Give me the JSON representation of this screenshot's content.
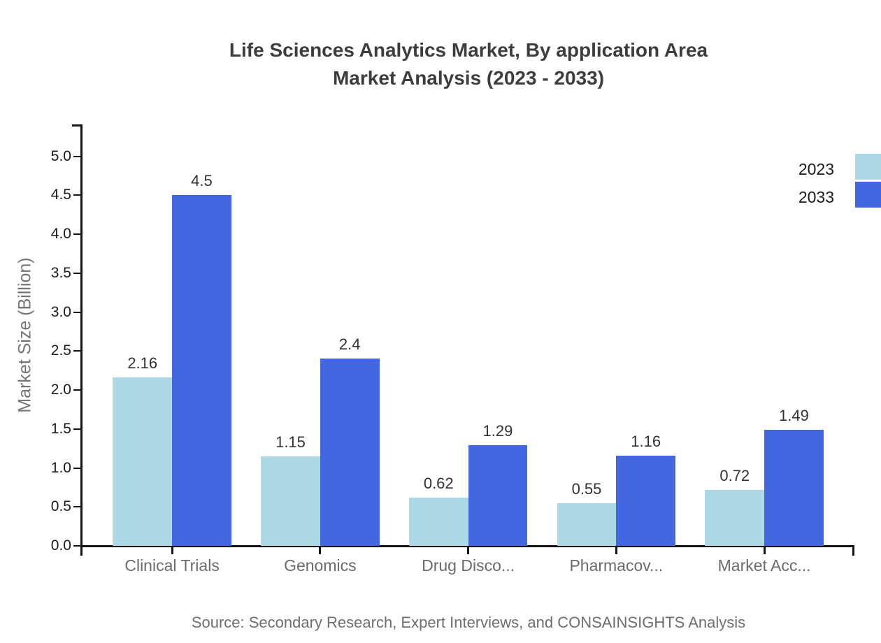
{
  "title": {
    "line1": "Life Sciences Analytics Market, By application Area",
    "line2": "Market Analysis (2023 - 2033)"
  },
  "source": "Source: Secondary Research, Expert Interviews, and CONSAINSIGHTS Analysis",
  "colors": {
    "series_2023": "#ADD8E6",
    "series_2033": "#4267E0",
    "axis": "#141414",
    "title_text": "#3D3D3D",
    "ytick_label": "#1A1A1A",
    "category_label": "#6B6B6B",
    "value_label": "#333333",
    "axis_title": "#757575",
    "source_text": "#6E6E6E",
    "background": "#FFFFFF"
  },
  "chart_data": {
    "type": "bar",
    "title": "Life Sciences Analytics Market, By application Area Market Analysis (2023 - 2033)",
    "categories": [
      "Clinical Trials",
      "Genomics",
      "Drug Disco...",
      "Pharmacov...",
      "Market Acc..."
    ],
    "series": [
      {
        "name": "2023",
        "color": "#ADD8E6",
        "values": [
          2.16,
          1.15,
          0.62,
          0.55,
          0.72
        ],
        "value_labels": [
          "2.16",
          "1.15",
          "0.62",
          "0.55",
          "0.72"
        ]
      },
      {
        "name": "2033",
        "color": "#4267E0",
        "values": [
          4.5,
          2.4,
          1.29,
          1.16,
          1.49
        ],
        "value_labels": [
          "4.5",
          "2.4",
          "1.29",
          "1.16",
          "1.49"
        ]
      }
    ],
    "xlabel": "",
    "ylabel": "Market Size (Billion)",
    "ylim": [
      0,
      5.4
    ],
    "ytick_values": [
      0.0,
      0.5,
      1.0,
      1.5,
      2.0,
      2.5,
      3.0,
      3.5,
      4.0,
      4.5,
      5.0
    ],
    "ytick_labels": [
      "0.0",
      "0.5",
      "1.0",
      "1.5",
      "2.0",
      "2.5",
      "3.0",
      "3.5",
      "4.0",
      "4.5",
      "5.0"
    ],
    "grid": false,
    "legend": {
      "position": "top-right",
      "entries": [
        "2023",
        "2033"
      ]
    }
  }
}
